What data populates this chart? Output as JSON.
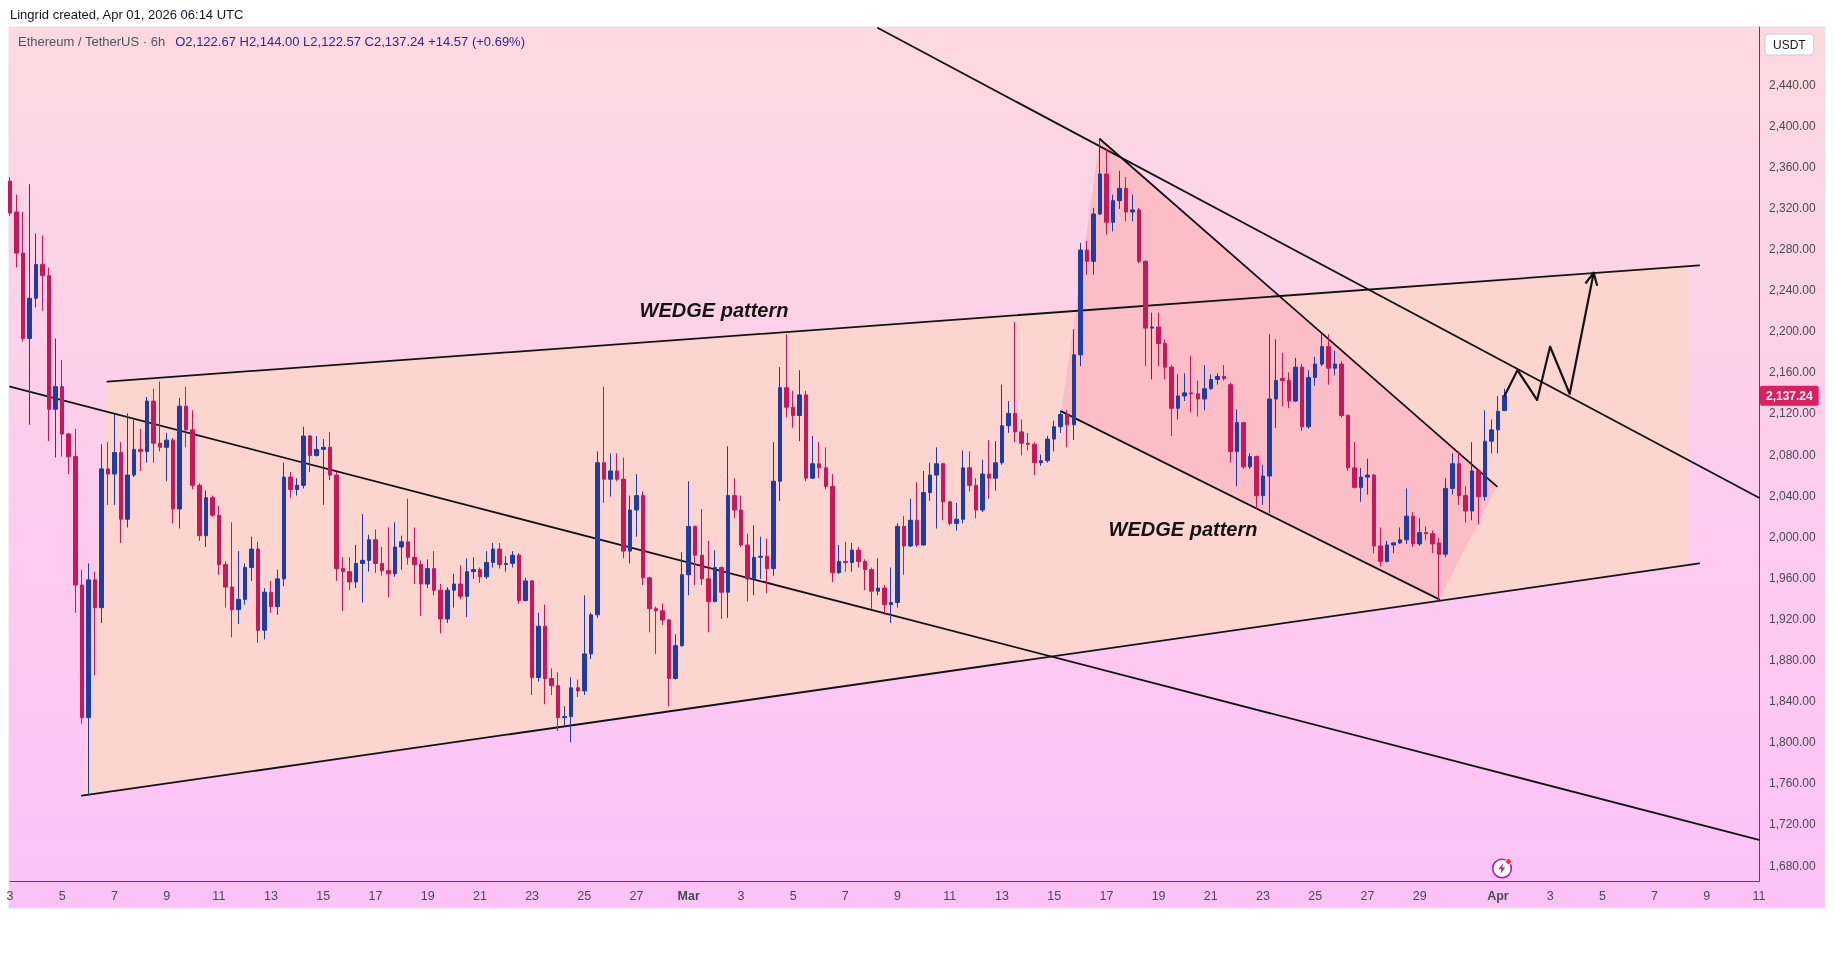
{
  "chart_data": {
    "type": "candlestick",
    "title": "Ethereum / TetherUS · 6h",
    "ylabel": "USDT",
    "x": [
      "2026-02-03T00:00",
      "2026-02-03T06:00",
      "2026-02-03T12:00",
      "2026-02-03T18:00",
      "2026-02-04T00:00",
      "2026-02-04T06:00",
      "2026-02-04T12:00",
      "2026-02-04T18:00",
      "2026-02-05T00:00",
      "2026-02-05T06:00",
      "2026-02-05T12:00",
      "2026-02-05T18:00",
      "2026-02-06T00:00",
      "2026-02-06T06:00",
      "2026-02-06T12:00",
      "2026-02-06T18:00",
      "2026-02-07T00:00",
      "2026-02-07T06:00",
      "2026-02-07T12:00",
      "2026-02-07T18:00",
      "2026-02-08T00:00",
      "2026-02-08T06:00",
      "2026-02-08T12:00",
      "2026-02-08T18:00",
      "2026-02-09T00:00",
      "2026-02-09T06:00",
      "2026-02-09T12:00",
      "2026-02-09T18:00",
      "2026-02-10T00:00",
      "2026-02-10T06:00",
      "2026-02-10T12:00",
      "2026-02-10T18:00",
      "2026-02-11T00:00",
      "2026-02-11T06:00",
      "2026-02-11T12:00",
      "2026-02-11T18:00",
      "2026-02-12T00:00",
      "2026-02-12T06:00",
      "2026-02-12T12:00",
      "2026-02-12T18:00",
      "2026-02-13T00:00",
      "2026-02-13T06:00",
      "2026-02-13T12:00",
      "2026-02-13T18:00",
      "2026-02-14T00:00",
      "2026-02-14T06:00",
      "2026-02-14T12:00",
      "2026-02-14T18:00",
      "2026-02-15T00:00",
      "2026-02-15T06:00",
      "2026-02-15T12:00",
      "2026-02-15T18:00",
      "2026-02-16T00:00",
      "2026-02-16T06:00",
      "2026-02-16T12:00",
      "2026-02-16T18:00",
      "2026-02-17T00:00",
      "2026-02-17T06:00",
      "2026-02-17T12:00",
      "2026-02-17T18:00",
      "2026-02-18T00:00",
      "2026-02-18T06:00",
      "2026-02-18T12:00",
      "2026-02-18T18:00",
      "2026-02-19T00:00",
      "2026-02-19T06:00",
      "2026-02-19T12:00",
      "2026-02-19T18:00",
      "2026-02-20T00:00",
      "2026-02-20T06:00",
      "2026-02-20T12:00",
      "2026-02-20T18:00",
      "2026-02-21T00:00",
      "2026-02-21T06:00",
      "2026-02-21T12:00",
      "2026-02-21T18:00",
      "2026-02-22T00:00",
      "2026-02-22T06:00",
      "2026-02-22T12:00",
      "2026-02-22T18:00",
      "2026-02-23T00:00",
      "2026-02-23T06:00",
      "2026-02-23T12:00",
      "2026-02-23T18:00",
      "2026-02-24T00:00",
      "2026-02-24T06:00",
      "2026-02-24T12:00",
      "2026-02-24T18:00",
      "2026-02-25T00:00",
      "2026-02-25T06:00",
      "2026-02-25T12:00",
      "2026-02-25T18:00",
      "2026-02-26T00:00",
      "2026-02-26T06:00",
      "2026-02-26T12:00",
      "2026-02-26T18:00",
      "2026-02-27T00:00",
      "2026-02-27T06:00",
      "2026-02-27T12:00",
      "2026-02-27T18:00",
      "2026-02-28T00:00",
      "2026-02-28T06:00",
      "2026-02-28T12:00",
      "2026-02-28T18:00",
      "2026-03-01T00:00",
      "2026-03-01T06:00",
      "2026-03-01T12:00",
      "2026-03-01T18:00",
      "2026-03-02T00:00",
      "2026-03-02T06:00",
      "2026-03-02T12:00",
      "2026-03-02T18:00",
      "2026-03-03T00:00",
      "2026-03-03T06:00",
      "2026-03-03T12:00",
      "2026-03-03T18:00",
      "2026-03-04T00:00",
      "2026-03-04T06:00",
      "2026-03-04T12:00",
      "2026-03-04T18:00",
      "2026-03-05T00:00",
      "2026-03-05T06:00",
      "2026-03-05T12:00",
      "2026-03-05T18:00",
      "2026-03-06T00:00",
      "2026-03-06T06:00",
      "2026-03-06T12:00",
      "2026-03-06T18:00",
      "2026-03-07T00:00",
      "2026-03-07T06:00",
      "2026-03-07T12:00",
      "2026-03-07T18:00",
      "2026-03-08T00:00",
      "2026-03-08T06:00",
      "2026-03-08T12:00",
      "2026-03-08T18:00",
      "2026-03-09T00:00",
      "2026-03-09T06:00",
      "2026-03-09T12:00",
      "2026-03-09T18:00",
      "2026-03-10T00:00",
      "2026-03-10T06:00",
      "2026-03-10T12:00",
      "2026-03-10T18:00",
      "2026-03-11T00:00",
      "2026-03-11T06:00",
      "2026-03-11T12:00",
      "2026-03-11T18:00",
      "2026-03-12T00:00",
      "2026-03-12T06:00",
      "2026-03-12T12:00",
      "2026-03-12T18:00",
      "2026-03-13T00:00",
      "2026-03-13T06:00",
      "2026-03-13T12:00",
      "2026-03-13T18:00",
      "2026-03-14T00:00",
      "2026-03-14T06:00",
      "2026-03-14T12:00",
      "2026-03-14T18:00",
      "2026-03-15T00:00",
      "2026-03-15T06:00",
      "2026-03-15T12:00",
      "2026-03-15T18:00",
      "2026-03-16T00:00",
      "2026-03-16T06:00",
      "2026-03-16T12:00",
      "2026-03-16T18:00",
      "2026-03-17T00:00",
      "2026-03-17T06:00",
      "2026-03-17T12:00",
      "2026-03-17T18:00",
      "2026-03-18T00:00",
      "2026-03-18T06:00",
      "2026-03-18T12:00",
      "2026-03-18T18:00",
      "2026-03-19T00:00",
      "2026-03-19T06:00",
      "2026-03-19T12:00",
      "2026-03-19T18:00",
      "2026-03-20T00:00",
      "2026-03-20T06:00",
      "2026-03-20T12:00",
      "2026-03-20T18:00",
      "2026-03-21T00:00",
      "2026-03-21T06:00",
      "2026-03-21T12:00",
      "2026-03-21T18:00",
      "2026-03-22T00:00",
      "2026-03-22T06:00",
      "2026-03-22T12:00",
      "2026-03-22T18:00",
      "2026-03-23T00:00",
      "2026-03-23T06:00",
      "2026-03-23T12:00",
      "2026-03-23T18:00",
      "2026-03-24T00:00",
      "2026-03-24T06:00",
      "2026-03-24T12:00",
      "2026-03-24T18:00",
      "2026-03-25T00:00",
      "2026-03-25T06:00",
      "2026-03-25T12:00",
      "2026-03-25T18:00",
      "2026-03-26T00:00",
      "2026-03-26T06:00",
      "2026-03-26T12:00",
      "2026-03-26T18:00",
      "2026-03-27T00:00",
      "2026-03-27T06:00",
      "2026-03-27T12:00",
      "2026-03-27T18:00",
      "2026-03-28T00:00",
      "2026-03-28T06:00",
      "2026-03-28T12:00",
      "2026-03-28T18:00",
      "2026-03-29T00:00",
      "2026-03-29T06:00",
      "2026-03-29T12:00",
      "2026-03-29T18:00",
      "2026-03-30T00:00",
      "2026-03-30T06:00",
      "2026-03-30T12:00",
      "2026-03-30T18:00",
      "2026-03-31T00:00",
      "2026-03-31T06:00",
      "2026-03-31T12:00",
      "2026-03-31T18:00",
      "2026-04-01T00:00",
      "2026-04-01T06:00"
    ],
    "ohlc": [
      [
        2346,
        2350,
        2312,
        2315
      ],
      [
        2316,
        2333,
        2262,
        2276
      ],
      [
        2276,
        2316,
        2190,
        2193
      ],
      [
        2193,
        2343,
        2109,
        2232
      ],
      [
        2232,
        2295,
        2223,
        2265
      ],
      [
        2265,
        2293,
        2220,
        2254
      ],
      [
        2254,
        2262,
        2093,
        2124
      ],
      [
        2124,
        2193,
        2077,
        2146
      ],
      [
        2146,
        2172,
        2078,
        2100
      ],
      [
        2100,
        2101,
        2061,
        2078
      ],
      [
        2078,
        2105,
        1926,
        1953
      ],
      [
        1953,
        1968,
        1818,
        1824
      ],
      [
        1824,
        1974,
        1748,
        1958
      ],
      [
        1958,
        1966,
        1865,
        1931
      ],
      [
        1931,
        2090,
        1916,
        2066
      ],
      [
        2066,
        2092,
        2031,
        2061
      ],
      [
        2061,
        2119,
        2031,
        2082
      ],
      [
        2082,
        2092,
        1994,
        2017
      ],
      [
        2017,
        2120,
        2009,
        2060
      ],
      [
        2060,
        2114,
        2058,
        2085
      ],
      [
        2085,
        2105,
        2064,
        2083
      ],
      [
        2083,
        2136,
        2072,
        2132
      ],
      [
        2132,
        2144,
        2072,
        2091
      ],
      [
        2091,
        2151,
        2083,
        2087
      ],
      [
        2087,
        2101,
        2054,
        2094
      ],
      [
        2094,
        2096,
        2013,
        2027
      ],
      [
        2027,
        2135,
        2008,
        2127
      ],
      [
        2127,
        2146,
        2087,
        2104
      ],
      [
        2104,
        2123,
        2046,
        2050
      ],
      [
        2050,
        2052,
        1996,
        2001
      ],
      [
        2001,
        2045,
        1990,
        2038
      ],
      [
        2038,
        2040,
        2019,
        2021
      ],
      [
        2021,
        2030,
        1963,
        1973
      ],
      [
        1973,
        1976,
        1931,
        1951
      ],
      [
        1951,
        2014,
        1902,
        1929
      ],
      [
        1929,
        1986,
        1915,
        1939
      ],
      [
        1939,
        1974,
        1934,
        1970
      ],
      [
        1970,
        2000,
        1957,
        1988
      ],
      [
        1988,
        1995,
        1897,
        1909
      ],
      [
        1909,
        1950,
        1900,
        1946
      ],
      [
        1946,
        1957,
        1926,
        1932
      ],
      [
        1932,
        1968,
        1924,
        1959
      ],
      [
        1959,
        2072,
        1952,
        2058
      ],
      [
        2058,
        2063,
        2038,
        2046
      ],
      [
        2046,
        2057,
        2040,
        2050
      ],
      [
        2050,
        2107,
        2047,
        2098
      ],
      [
        2098,
        2099,
        2063,
        2079
      ],
      [
        2079,
        2098,
        2078,
        2085
      ],
      [
        2085,
        2095,
        2031,
        2087
      ],
      [
        2087,
        2102,
        2055,
        2060
      ],
      [
        2060,
        2063,
        1957,
        1969
      ],
      [
        1969,
        1980,
        1928,
        1966
      ],
      [
        1966,
        1980,
        1948,
        1956
      ],
      [
        1956,
        1992,
        1950,
        1974
      ],
      [
        1974,
        2022,
        1936,
        1977
      ],
      [
        1977,
        2002,
        1966,
        1997
      ],
      [
        1997,
        2007,
        1965,
        1974
      ],
      [
        1974,
        1990,
        1962,
        1967
      ],
      [
        1967,
        2009,
        1941,
        1964
      ],
      [
        1964,
        2014,
        1961,
        1990
      ],
      [
        1990,
        2001,
        1968,
        1995
      ],
      [
        1995,
        2037,
        1973,
        1980
      ],
      [
        1980,
        2009,
        1954,
        1973
      ],
      [
        1973,
        1977,
        1923,
        1954
      ],
      [
        1954,
        1978,
        1950,
        1969
      ],
      [
        1969,
        1986,
        1943,
        1948
      ],
      [
        1948,
        1954,
        1906,
        1920
      ],
      [
        1920,
        1951,
        1916,
        1948
      ],
      [
        1948,
        1964,
        1931,
        1954
      ],
      [
        1954,
        1972,
        1939,
        1942
      ],
      [
        1942,
        1979,
        1922,
        1966
      ],
      [
        1966,
        1980,
        1959,
        1968
      ],
      [
        1968,
        1970,
        1955,
        1961
      ],
      [
        1961,
        1986,
        1959,
        1975
      ],
      [
        1975,
        1994,
        1970,
        1988
      ],
      [
        1988,
        1994,
        1969,
        1973
      ],
      [
        1973,
        1981,
        1966,
        1974
      ],
      [
        1974,
        1986,
        1970,
        1982
      ],
      [
        1982,
        1984,
        1935,
        1938
      ],
      [
        1938,
        1960,
        1937,
        1957
      ],
      [
        1957,
        1958,
        1846,
        1863
      ],
      [
        1863,
        1926,
        1859,
        1913
      ],
      [
        1913,
        1934,
        1837,
        1862
      ],
      [
        1862,
        1872,
        1846,
        1855
      ],
      [
        1855,
        1868,
        1811,
        1824
      ],
      [
        1824,
        1835,
        1815,
        1825
      ],
      [
        1825,
        1863,
        1800,
        1853
      ],
      [
        1853,
        1861,
        1844,
        1850
      ],
      [
        1850,
        1943,
        1846,
        1886
      ],
      [
        1886,
        1926,
        1881,
        1924
      ],
      [
        1924,
        2083,
        1921,
        2072
      ],
      [
        2072,
        2146,
        2033,
        2056
      ],
      [
        2056,
        2081,
        2039,
        2064
      ],
      [
        2064,
        2081,
        2054,
        2056
      ],
      [
        2056,
        2077,
        1979,
        1986
      ],
      [
        1986,
        2040,
        1974,
        2026
      ],
      [
        2026,
        2061,
        2000,
        2040
      ],
      [
        2040,
        2044,
        1953,
        1960
      ],
      [
        1960,
        1961,
        1907,
        1930
      ],
      [
        1930,
        1932,
        1886,
        1928
      ],
      [
        1928,
        1935,
        1914,
        1919
      ],
      [
        1919,
        1920,
        1835,
        1862
      ],
      [
        1862,
        1905,
        1861,
        1894
      ],
      [
        1894,
        1985,
        1893,
        1963
      ],
      [
        1963,
        2054,
        1943,
        2010
      ],
      [
        2010,
        2011,
        1953,
        1982
      ],
      [
        1982,
        2027,
        1953,
        1959
      ],
      [
        1959,
        1996,
        1907,
        1937
      ],
      [
        1937,
        1987,
        1936,
        1970
      ],
      [
        1970,
        1971,
        1920,
        1946
      ],
      [
        1946,
        2088,
        1921,
        2040
      ],
      [
        2040,
        2057,
        2018,
        2026
      ],
      [
        2026,
        2040,
        1990,
        1992
      ],
      [
        1992,
        2003,
        1937,
        1959
      ],
      [
        1959,
        2011,
        1943,
        1980
      ],
      [
        1980,
        2000,
        1959,
        1981
      ],
      [
        1981,
        1998,
        1945,
        1969
      ],
      [
        1969,
        2092,
        1962,
        2054
      ],
      [
        2054,
        2165,
        2035,
        2145
      ],
      [
        2145,
        2197,
        2116,
        2126
      ],
      [
        2126,
        2142,
        2106,
        2118
      ],
      [
        2118,
        2162,
        2093,
        2138
      ],
      [
        2138,
        2142,
        2054,
        2057
      ],
      [
        2057,
        2098,
        2056,
        2071
      ],
      [
        2071,
        2092,
        2057,
        2067
      ],
      [
        2067,
        2087,
        2046,
        2049
      ],
      [
        2049,
        2061,
        1956,
        1965
      ],
      [
        1965,
        1992,
        1964,
        1976
      ],
      [
        1976,
        1995,
        1966,
        1975
      ],
      [
        1975,
        1994,
        1966,
        1987
      ],
      [
        1987,
        1990,
        1970,
        1976
      ],
      [
        1976,
        1978,
        1948,
        1968
      ],
      [
        1968,
        1970,
        1930,
        1947
      ],
      [
        1947,
        1979,
        1943,
        1950
      ],
      [
        1950,
        1953,
        1924,
        1934
      ],
      [
        1934,
        1970,
        1916,
        1936
      ],
      [
        1936,
        2013,
        1931,
        2010
      ],
      [
        2010,
        2020,
        1963,
        1991
      ],
      [
        1991,
        2037,
        1990,
        2016
      ],
      [
        2016,
        2053,
        1990,
        1992
      ],
      [
        1992,
        2064,
        1991,
        2043
      ],
      [
        2043,
        2072,
        2035,
        2060
      ],
      [
        2060,
        2087,
        2008,
        2071
      ],
      [
        2071,
        2072,
        2016,
        2034
      ],
      [
        2034,
        2035,
        2011,
        2013
      ],
      [
        2013,
        2033,
        2006,
        2017
      ],
      [
        2017,
        2084,
        2013,
        2067
      ],
      [
        2067,
        2083,
        2044,
        2050
      ],
      [
        2050,
        2057,
        2018,
        2026
      ],
      [
        2026,
        2075,
        2024,
        2061
      ],
      [
        2061,
        2094,
        2037,
        2057
      ],
      [
        2057,
        2093,
        2045,
        2072
      ],
      [
        2072,
        2148,
        2070,
        2108
      ],
      [
        2108,
        2132,
        2101,
        2120
      ],
      [
        2120,
        2209,
        2092,
        2102
      ],
      [
        2102,
        2114,
        2079,
        2091
      ],
      [
        2091,
        2101,
        2084,
        2090
      ],
      [
        2090,
        2092,
        2060,
        2072
      ],
      [
        2072,
        2080,
        2069,
        2074
      ],
      [
        2074,
        2098,
        2072,
        2095
      ],
      [
        2095,
        2113,
        2083,
        2107
      ],
      [
        2107,
        2123,
        2101,
        2119
      ],
      [
        2119,
        2123,
        2087,
        2109
      ],
      [
        2109,
        2202,
        2094,
        2177
      ],
      [
        2177,
        2286,
        2166,
        2279
      ],
      [
        2279,
        2288,
        2255,
        2268
      ],
      [
        2268,
        2320,
        2255,
        2314
      ],
      [
        2314,
        2387,
        2313,
        2353
      ],
      [
        2353,
        2377,
        2294,
        2306
      ],
      [
        2306,
        2333,
        2297,
        2327
      ],
      [
        2327,
        2356,
        2319,
        2339
      ],
      [
        2339,
        2350,
        2307,
        2316
      ],
      [
        2316,
        2333,
        2307,
        2318
      ],
      [
        2318,
        2320,
        2266,
        2268
      ],
      [
        2268,
        2269,
        2166,
        2203
      ],
      [
        2203,
        2218,
        2153,
        2204
      ],
      [
        2204,
        2218,
        2166,
        2188
      ],
      [
        2188,
        2192,
        2153,
        2165
      ],
      [
        2165,
        2167,
        2098,
        2125
      ],
      [
        2125,
        2158,
        2114,
        2137
      ],
      [
        2137,
        2159,
        2132,
        2140
      ],
      [
        2140,
        2176,
        2121,
        2139
      ],
      [
        2139,
        2152,
        2117,
        2134
      ],
      [
        2134,
        2167,
        2123,
        2144
      ],
      [
        2144,
        2158,
        2143,
        2153
      ],
      [
        2153,
        2159,
        2148,
        2156
      ],
      [
        2156,
        2167,
        2152,
        2154
      ],
      [
        2148,
        2150,
        2072,
        2083
      ],
      [
        2083,
        2124,
        2049,
        2111
      ],
      [
        2111,
        2112,
        2066,
        2068
      ],
      [
        2068,
        2081,
        2066,
        2078
      ],
      [
        2078,
        2079,
        2027,
        2040
      ],
      [
        2040,
        2070,
        2031,
        2059
      ],
      [
        2059,
        2197,
        2023,
        2134
      ],
      [
        2134,
        2192,
        2106,
        2152
      ],
      [
        2154,
        2179,
        2127,
        2152
      ],
      [
        2152,
        2160,
        2125,
        2132
      ],
      [
        2132,
        2174,
        2131,
        2165
      ],
      [
        2165,
        2168,
        2103,
        2107
      ],
      [
        2107,
        2162,
        2105,
        2155
      ],
      [
        2155,
        2175,
        2147,
        2168
      ],
      [
        2168,
        2197,
        2166,
        2185
      ],
      [
        2185,
        2197,
        2148,
        2164
      ],
      [
        2164,
        2181,
        2157,
        2168
      ],
      [
        2168,
        2171,
        2116,
        2118
      ],
      [
        2118,
        2119,
        2064,
        2067
      ],
      [
        2067,
        2092,
        2047,
        2048
      ],
      [
        2048,
        2067,
        2034,
        2058
      ],
      [
        2058,
        2076,
        2041,
        2060
      ],
      [
        2060,
        2061,
        1984,
        1991
      ],
      [
        1991,
        2009,
        1971,
        1976
      ],
      [
        1976,
        1996,
        1975,
        1992
      ],
      [
        1992,
        1995,
        1984,
        1994
      ],
      [
        1994,
        2009,
        1993,
        1997
      ],
      [
        1997,
        2047,
        1993,
        2020
      ],
      [
        2020,
        2024,
        1990,
        1993
      ],
      [
        1993,
        2018,
        1991,
        2004
      ],
      [
        2004,
        2010,
        1997,
        2003
      ],
      [
        2003,
        2006,
        1984,
        1993
      ],
      [
        1994,
        1999,
        1938,
        1983
      ],
      [
        1983,
        2057,
        1980,
        2047
      ],
      [
        2047,
        2081,
        2041,
        2071
      ],
      [
        2071,
        2083,
        2031,
        2040
      ],
      [
        2040,
        2049,
        2014,
        2025
      ],
      [
        2025,
        2092,
        2016,
        2064
      ],
      [
        2064,
        2065,
        2012,
        2039
      ],
      [
        2039,
        2123,
        2035,
        2093
      ],
      [
        2093,
        2114,
        2081,
        2104
      ],
      [
        2104,
        2137,
        2081,
        2122
      ],
      [
        2122.67,
        2144.0,
        2122.57,
        2137.24
      ]
    ],
    "series": [
      {
        "type": "line",
        "color": "#fcd5d0",
        "x": [
          "2026-02-05T18:00",
          "2026-02-06T17:30",
          "2026-04-08T06:00"
        ],
        "values": [
          null,
          null,
          null
        ],
        "lower": [
          1748,
          1752,
          1972
        ],
        "upper": [
          1748,
          2151,
          2264
        ]
      },
      {
        "type": "line",
        "color": "#fbbdc6",
        "x": [
          "2026-03-15T06:30",
          "2026-03-16T18:00",
          "2026-03-29T18:00",
          "2026-03-31T23:00"
        ],
        "values": [
          null,
          null,
          null,
          null
        ],
        "lower": [
          2122,
          2104,
          1939,
          2049
        ],
        "upper": [
          2122,
          2387,
          2098,
          2049
        ]
      },
      {
        "type": "line",
        "color": "#131313",
        "x": [
          "2026-02-06T17:30",
          "2026-04-08T17:00"
        ],
        "values": [
          2151,
          2264
        ]
      },
      {
        "type": "line",
        "color": "#131313",
        "x": [
          "2026-02-05T18:00",
          "2026-04-08T17:00"
        ],
        "values": [
          1748,
          1974
        ]
      },
      {
        "type": "line",
        "color": "#131313",
        "x": [
          "2026-02-03T00:00",
          "2026-04-11T00:00"
        ],
        "values": [
          2146,
          1705
        ]
      },
      {
        "type": "line",
        "color": "#131313",
        "x": [
          "2026-03-08T06:00",
          "2026-04-11T00:00"
        ],
        "values": [
          2495,
          2038
        ]
      },
      {
        "type": "line",
        "color": "#131313",
        "x": [
          "2026-03-16T18:00",
          "2026-03-31T23:00"
        ],
        "values": [
          2387,
          2049
        ]
      },
      {
        "type": "line",
        "color": "#131313",
        "x": [
          "2026-03-15T06:30",
          "2026-03-29T18:00"
        ],
        "values": [
          2122,
          1939
        ]
      }
    ],
    "xlim": [
      "2026-02-03T00:00",
      "2026-04-11T00:00"
    ],
    "xticks": [
      {
        "value": "2026-02-03",
        "label": "3"
      },
      {
        "value": "2026-02-05",
        "label": "5"
      },
      {
        "value": "2026-02-07",
        "label": "7"
      },
      {
        "value": "2026-02-09",
        "label": "9"
      },
      {
        "value": "2026-02-11",
        "label": "11"
      },
      {
        "value": "2026-02-13",
        "label": "13"
      },
      {
        "value": "2026-02-15",
        "label": "15"
      },
      {
        "value": "2026-02-17",
        "label": "17"
      },
      {
        "value": "2026-02-19",
        "label": "19"
      },
      {
        "value": "2026-02-21",
        "label": "21"
      },
      {
        "value": "2026-02-23",
        "label": "23"
      },
      {
        "value": "2026-02-25",
        "label": "25"
      },
      {
        "value": "2026-02-27",
        "label": "27"
      },
      {
        "value": "2026-03-01",
        "label": "Mar"
      },
      {
        "value": "2026-03-03",
        "label": "3"
      },
      {
        "value": "2026-03-05",
        "label": "5"
      },
      {
        "value": "2026-03-07",
        "label": "7"
      },
      {
        "value": "2026-03-09",
        "label": "9"
      },
      {
        "value": "2026-03-11",
        "label": "11"
      },
      {
        "value": "2026-03-13",
        "label": "13"
      },
      {
        "value": "2026-03-15",
        "label": "15"
      },
      {
        "value": "2026-03-17",
        "label": "17"
      },
      {
        "value": "2026-03-19",
        "label": "19"
      },
      {
        "value": "2026-03-21",
        "label": "21"
      },
      {
        "value": "2026-03-23",
        "label": "23"
      },
      {
        "value": "2026-03-25",
        "label": "25"
      },
      {
        "value": "2026-03-27",
        "label": "27"
      },
      {
        "value": "2026-03-29",
        "label": "29"
      },
      {
        "value": "2026-04-01",
        "label": "Apr"
      },
      {
        "value": "2026-04-03",
        "label": "3"
      },
      {
        "value": "2026-04-05",
        "label": "5"
      },
      {
        "value": "2026-04-07",
        "label": "7"
      },
      {
        "value": "2026-04-09",
        "label": "9"
      },
      {
        "value": "2026-04-11",
        "label": "11"
      }
    ],
    "ylim": [
      1665,
      2496
    ],
    "yticks": [
      {
        "value": 1680,
        "label": "1,680.00"
      },
      {
        "value": 1720,
        "label": "1,720.00"
      },
      {
        "value": 1760,
        "label": "1,760.00"
      },
      {
        "value": 1800,
        "label": "1,800.00"
      },
      {
        "value": 1840,
        "label": "1,840.00"
      },
      {
        "value": 1880,
        "label": "1,880.00"
      },
      {
        "value": 1920,
        "label": "1,920.00"
      },
      {
        "value": 1960,
        "label": "1,960.00"
      },
      {
        "value": 2000,
        "label": "2,000.00"
      },
      {
        "value": 2040,
        "label": "2,040.00"
      },
      {
        "value": 2080,
        "label": "2,080.00"
      },
      {
        "value": 2120,
        "label": "2,120.00"
      },
      {
        "value": 2160,
        "label": "2,160.00"
      },
      {
        "value": 2200,
        "label": "2,200.00"
      },
      {
        "value": 2240,
        "label": "2,240.00"
      },
      {
        "value": 2280,
        "label": "2,280.00"
      },
      {
        "value": 2320,
        "label": "2,320.00"
      },
      {
        "value": 2360,
        "label": "2,360.00"
      },
      {
        "value": 2400,
        "label": "2,400.00"
      },
      {
        "value": 2440,
        "label": "2,440.00"
      }
    ],
    "annotations": [
      "Lingrid created, Apr 01, 2026 06:14 UTC",
      "O2,122.67 H2,144.00 L2,122.57 C2,137.24 +14.57 (+0.69%)",
      "WEDGE pattern",
      "WEDGE pattern",
      "2,137.24"
    ]
  }
}
